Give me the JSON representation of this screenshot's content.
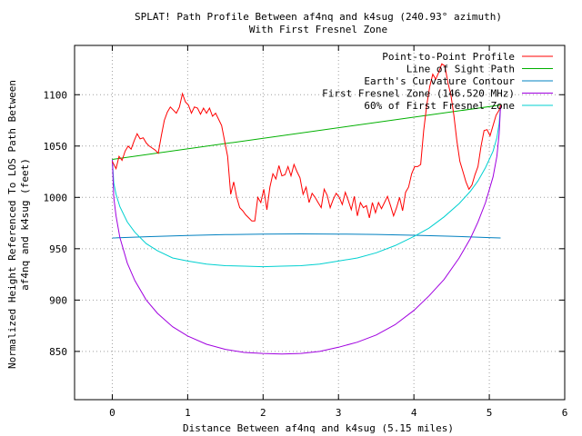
{
  "chart_data": {
    "type": "line",
    "title_lines": [
      "SPLAT! Path Profile Between af4nq and k4sug (240.93° azimuth)",
      "With First Fresnel Zone"
    ],
    "xlabel": "Distance Between af4nq and k4sug (5.15 miles)",
    "ylabel_lines": [
      "Normalized Height Referenced To LOS Path Between",
      "af4nq and k4sug (feet)"
    ],
    "xlim": [
      -0.5,
      6
    ],
    "ylim": [
      803,
      1148
    ],
    "x_ticks": [
      0,
      1,
      2,
      3,
      4,
      5,
      6
    ],
    "y_ticks": [
      850,
      900,
      950,
      1000,
      1050,
      1100
    ],
    "grid": true,
    "legend_position": "top-right",
    "series": [
      {
        "name": "Point-to-Point Profile",
        "color": "#ff0000",
        "points": [
          [
            0.0,
            1035
          ],
          [
            0.05,
            1028
          ],
          [
            0.09,
            1040
          ],
          [
            0.13,
            1036
          ],
          [
            0.17,
            1045
          ],
          [
            0.21,
            1050
          ],
          [
            0.25,
            1047
          ],
          [
            0.29,
            1055
          ],
          [
            0.33,
            1062
          ],
          [
            0.37,
            1057
          ],
          [
            0.41,
            1058
          ],
          [
            0.45,
            1053
          ],
          [
            0.49,
            1050
          ],
          [
            0.53,
            1048
          ],
          [
            0.57,
            1046
          ],
          [
            0.61,
            1043
          ],
          [
            0.65,
            1060
          ],
          [
            0.69,
            1075
          ],
          [
            0.73,
            1083
          ],
          [
            0.77,
            1088
          ],
          [
            0.81,
            1085
          ],
          [
            0.85,
            1082
          ],
          [
            0.89,
            1088
          ],
          [
            0.93,
            1101
          ],
          [
            0.97,
            1093
          ],
          [
            1.01,
            1090
          ],
          [
            1.05,
            1082
          ],
          [
            1.09,
            1088
          ],
          [
            1.13,
            1087
          ],
          [
            1.17,
            1081
          ],
          [
            1.21,
            1087
          ],
          [
            1.25,
            1082
          ],
          [
            1.29,
            1087
          ],
          [
            1.33,
            1079
          ],
          [
            1.37,
            1082
          ],
          [
            1.41,
            1076
          ],
          [
            1.45,
            1070
          ],
          [
            1.49,
            1055
          ],
          [
            1.53,
            1040
          ],
          [
            1.57,
            1003
          ],
          [
            1.61,
            1015
          ],
          [
            1.65,
            1000
          ],
          [
            1.69,
            990
          ],
          [
            1.73,
            987
          ],
          [
            1.77,
            983
          ],
          [
            1.81,
            980
          ],
          [
            1.85,
            977
          ],
          [
            1.89,
            977
          ],
          [
            1.93,
            1000
          ],
          [
            1.97,
            995
          ],
          [
            2.01,
            1008
          ],
          [
            2.05,
            988
          ],
          [
            2.09,
            1010
          ],
          [
            2.13,
            1023
          ],
          [
            2.17,
            1018
          ],
          [
            2.21,
            1031
          ],
          [
            2.25,
            1021
          ],
          [
            2.29,
            1022
          ],
          [
            2.33,
            1030
          ],
          [
            2.37,
            1021
          ],
          [
            2.41,
            1032
          ],
          [
            2.45,
            1025
          ],
          [
            2.49,
            1019
          ],
          [
            2.53,
            1003
          ],
          [
            2.57,
            1010
          ],
          [
            2.61,
            995
          ],
          [
            2.65,
            1004
          ],
          [
            2.69,
            1000
          ],
          [
            2.73,
            995
          ],
          [
            2.77,
            990
          ],
          [
            2.81,
            1008
          ],
          [
            2.85,
            1002
          ],
          [
            2.89,
            990
          ],
          [
            2.93,
            998
          ],
          [
            2.97,
            1004
          ],
          [
            3.01,
            1000
          ],
          [
            3.05,
            993
          ],
          [
            3.09,
            1005
          ],
          [
            3.13,
            997
          ],
          [
            3.17,
            988
          ],
          [
            3.21,
            1001
          ],
          [
            3.25,
            982
          ],
          [
            3.29,
            995
          ],
          [
            3.33,
            990
          ],
          [
            3.37,
            992
          ],
          [
            3.41,
            980
          ],
          [
            3.45,
            995
          ],
          [
            3.49,
            985
          ],
          [
            3.53,
            995
          ],
          [
            3.57,
            989
          ],
          [
            3.61,
            995
          ],
          [
            3.65,
            1001
          ],
          [
            3.69,
            992
          ],
          [
            3.73,
            982
          ],
          [
            3.77,
            990
          ],
          [
            3.81,
            1000
          ],
          [
            3.85,
            987
          ],
          [
            3.89,
            1005
          ],
          [
            3.93,
            1010
          ],
          [
            3.97,
            1023
          ],
          [
            4.01,
            1030
          ],
          [
            4.05,
            1030
          ],
          [
            4.09,
            1032
          ],
          [
            4.13,
            1065
          ],
          [
            4.17,
            1090
          ],
          [
            4.21,
            1108
          ],
          [
            4.25,
            1120
          ],
          [
            4.29,
            1115
          ],
          [
            4.33,
            1122
          ],
          [
            4.37,
            1130
          ],
          [
            4.41,
            1128
          ],
          [
            4.45,
            1112
          ],
          [
            4.49,
            1100
          ],
          [
            4.53,
            1080
          ],
          [
            4.57,
            1055
          ],
          [
            4.61,
            1035
          ],
          [
            4.65,
            1025
          ],
          [
            4.69,
            1015
          ],
          [
            4.73,
            1008
          ],
          [
            4.77,
            1012
          ],
          [
            4.81,
            1022
          ],
          [
            4.85,
            1030
          ],
          [
            4.89,
            1050
          ],
          [
            4.93,
            1065
          ],
          [
            4.97,
            1066
          ],
          [
            5.01,
            1060
          ],
          [
            5.05,
            1070
          ],
          [
            5.09,
            1080
          ],
          [
            5.13,
            1085
          ],
          [
            5.15,
            1090
          ]
        ]
      },
      {
        "name": "Line of Sight Path",
        "color": "#00b000",
        "points": [
          [
            0.0,
            1037
          ],
          [
            5.15,
            1090
          ]
        ]
      },
      {
        "name": "Earth's Curvature Contour",
        "color": "#0080c0",
        "points": [
          [
            0.0,
            960.5
          ],
          [
            0.5,
            961.8
          ],
          [
            1.0,
            962.9
          ],
          [
            1.5,
            963.7
          ],
          [
            2.0,
            964.2
          ],
          [
            2.5,
            964.4
          ],
          [
            3.0,
            964.3
          ],
          [
            3.5,
            963.9
          ],
          [
            4.0,
            963.1
          ],
          [
            4.5,
            962.1
          ],
          [
            5.0,
            960.8
          ],
          [
            5.15,
            960.5
          ]
        ]
      },
      {
        "name": "First Fresnel Zone (146.520 MHz)",
        "color": "#a000e0",
        "points": [
          [
            0.0,
            1037
          ],
          [
            0.02,
            1000
          ],
          [
            0.05,
            982
          ],
          [
            0.1,
            961
          ],
          [
            0.2,
            936
          ],
          [
            0.3,
            919
          ],
          [
            0.45,
            900
          ],
          [
            0.6,
            887
          ],
          [
            0.8,
            874
          ],
          [
            1.0,
            865
          ],
          [
            1.25,
            857
          ],
          [
            1.5,
            852
          ],
          [
            1.75,
            849
          ],
          [
            2.0,
            848
          ],
          [
            2.25,
            847.5
          ],
          [
            2.5,
            848
          ],
          [
            2.75,
            850
          ],
          [
            3.0,
            854
          ],
          [
            3.25,
            859
          ],
          [
            3.5,
            866
          ],
          [
            3.75,
            876
          ],
          [
            4.0,
            890
          ],
          [
            4.2,
            904
          ],
          [
            4.4,
            920
          ],
          [
            4.6,
            941
          ],
          [
            4.75,
            960
          ],
          [
            4.85,
            976
          ],
          [
            4.95,
            995
          ],
          [
            5.05,
            1020
          ],
          [
            5.1,
            1040
          ],
          [
            5.13,
            1062
          ],
          [
            5.15,
            1090
          ]
        ]
      },
      {
        "name": "60% of First Fresnel Zone",
        "color": "#00d0d0",
        "points": [
          [
            0.0,
            1037
          ],
          [
            0.02,
            1014
          ],
          [
            0.05,
            1003
          ],
          [
            0.1,
            991
          ],
          [
            0.2,
            976
          ],
          [
            0.3,
            966
          ],
          [
            0.45,
            955
          ],
          [
            0.6,
            948
          ],
          [
            0.8,
            941
          ],
          [
            1.0,
            938
          ],
          [
            1.25,
            935
          ],
          [
            1.5,
            933.5
          ],
          [
            1.75,
            933
          ],
          [
            2.0,
            932.5
          ],
          [
            2.25,
            933
          ],
          [
            2.5,
            933.5
          ],
          [
            2.75,
            935
          ],
          [
            3.0,
            938
          ],
          [
            3.25,
            941
          ],
          [
            3.5,
            946
          ],
          [
            3.75,
            953
          ],
          [
            4.0,
            962
          ],
          [
            4.2,
            970
          ],
          [
            4.4,
            981
          ],
          [
            4.6,
            994
          ],
          [
            4.75,
            1006
          ],
          [
            4.85,
            1016
          ],
          [
            4.95,
            1029
          ],
          [
            5.05,
            1045
          ],
          [
            5.1,
            1058
          ],
          [
            5.13,
            1072
          ],
          [
            5.15,
            1090
          ]
        ]
      }
    ]
  }
}
